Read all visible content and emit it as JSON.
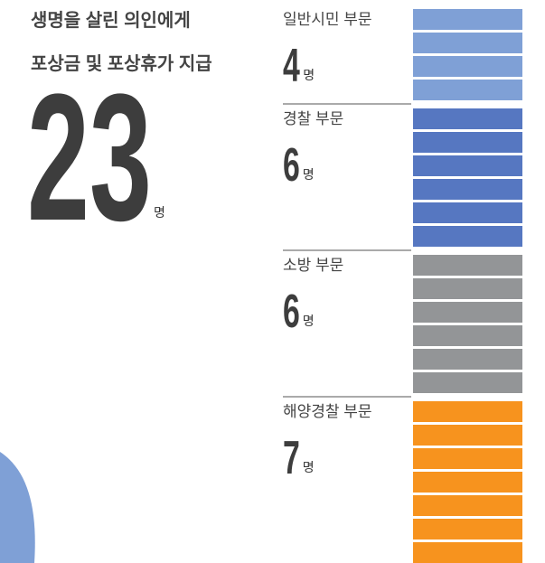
{
  "title_lines": [
    "생명을 살린 의인에게",
    "포상금 및 포상휴가 지급"
  ],
  "total": 23,
  "unit": "명",
  "groups": [
    {
      "name": "일반시민 부문",
      "count": 4,
      "color": "#7fa0d6"
    },
    {
      "name": "경찰 부문",
      "count": 6,
      "color": "#5677c1"
    },
    {
      "name": "소방 부문",
      "count": 6,
      "color": "#939597"
    },
    {
      "name": "해양경찰 부문",
      "count": 7,
      "color": "#f7931e"
    }
  ]
}
